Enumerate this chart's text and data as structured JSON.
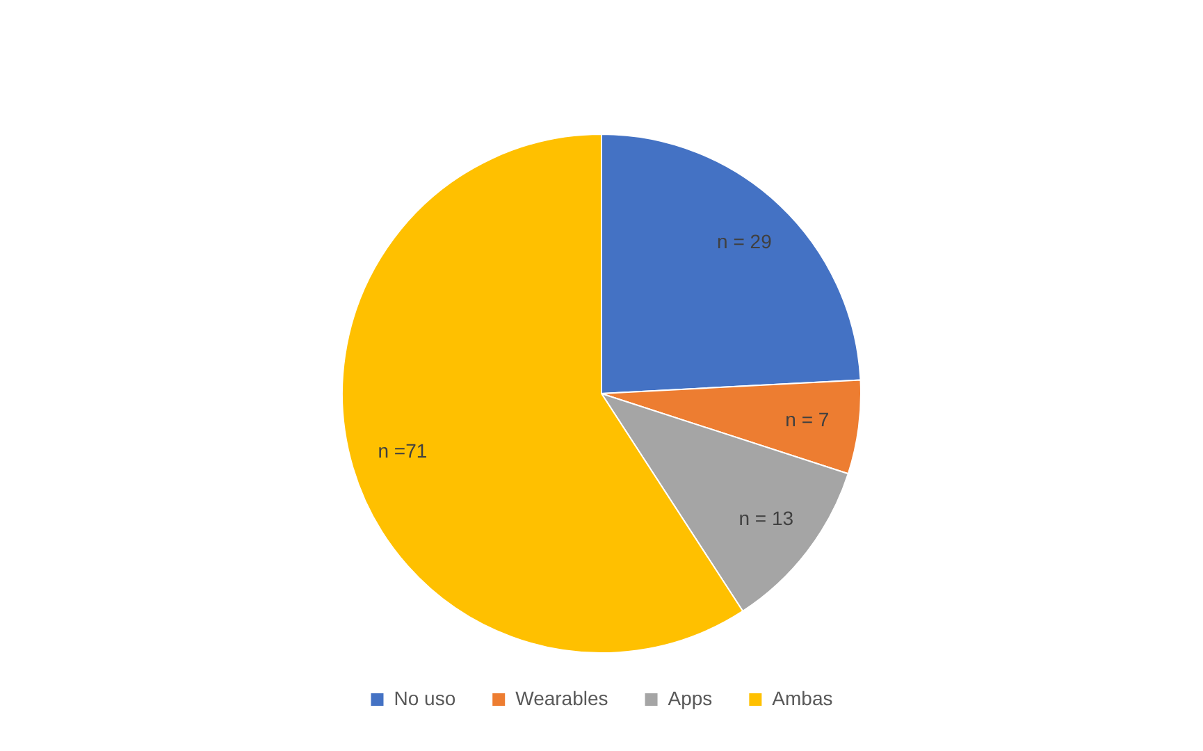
{
  "chart_data": {
    "type": "pie",
    "categories": [
      "No uso",
      "Wearables",
      "Apps",
      "Ambas"
    ],
    "values": [
      29,
      7,
      13,
      71
    ],
    "colors": [
      "#4472c4",
      "#ed7d31",
      "#a5a5a5",
      "#ffc000"
    ],
    "value_labels": [
      "n = 29",
      "n = 7",
      "n = 13",
      "n =71"
    ],
    "legend": "bottom"
  }
}
